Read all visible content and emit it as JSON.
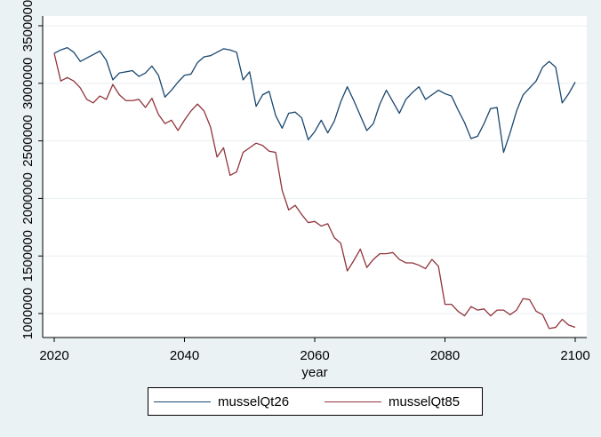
{
  "chart_data": {
    "type": "line",
    "xlabel": "year",
    "ylabel": "",
    "xlim": [
      2020,
      2100
    ],
    "ylim": [
      1000000,
      3500000
    ],
    "x_ticks": [
      2020,
      2040,
      2060,
      2080,
      2100
    ],
    "y_ticks": [
      1000000,
      1500000,
      2000000,
      2500000,
      3000000,
      3500000
    ],
    "x_tick_labels": [
      "2020",
      "2040",
      "2060",
      "2080",
      "2100"
    ],
    "y_tick_labels": [
      "1000000",
      "1500000",
      "2000000",
      "2500000",
      "3000000",
      "3500000"
    ],
    "grid": true,
    "legend_position": "bottom",
    "x": [
      2020,
      2021,
      2022,
      2023,
      2024,
      2025,
      2026,
      2027,
      2028,
      2029,
      2030,
      2031,
      2032,
      2033,
      2034,
      2035,
      2036,
      2037,
      2038,
      2039,
      2040,
      2041,
      2042,
      2043,
      2044,
      2045,
      2046,
      2047,
      2048,
      2049,
      2050,
      2051,
      2052,
      2053,
      2054,
      2055,
      2056,
      2057,
      2058,
      2059,
      2060,
      2061,
      2062,
      2063,
      2064,
      2065,
      2066,
      2067,
      2068,
      2069,
      2070,
      2071,
      2072,
      2073,
      2074,
      2075,
      2076,
      2077,
      2078,
      2079,
      2080,
      2081,
      2082,
      2083,
      2084,
      2085,
      2086,
      2087,
      2088,
      2089,
      2090,
      2091,
      2092,
      2093,
      2094,
      2095,
      2096,
      2097,
      2098,
      2099,
      2100
    ],
    "series": [
      {
        "name": "musselQt26",
        "color": "#1a476f",
        "values": [
          3260000,
          3290000,
          3310000,
          3270000,
          3190000,
          3220000,
          3250000,
          3280000,
          3200000,
          3030000,
          3090000,
          3100000,
          3110000,
          3060000,
          3090000,
          3150000,
          3070000,
          2880000,
          2940000,
          3010000,
          3070000,
          3080000,
          3180000,
          3230000,
          3240000,
          3270000,
          3300000,
          3290000,
          3270000,
          3030000,
          3100000,
          2800000,
          2900000,
          2930000,
          2720000,
          2610000,
          2740000,
          2750000,
          2700000,
          2510000,
          2580000,
          2680000,
          2570000,
          2670000,
          2840000,
          2970000,
          2850000,
          2720000,
          2590000,
          2650000,
          2820000,
          2940000,
          2840000,
          2740000,
          2860000,
          2920000,
          2970000,
          2860000,
          2900000,
          2940000,
          2910000,
          2890000,
          2770000,
          2660000,
          2520000,
          2540000,
          2650000,
          2780000,
          2790000,
          2400000,
          2570000,
          2760000,
          2900000,
          2960000,
          3020000,
          3140000,
          3190000,
          3140000,
          2830000,
          2910000,
          3010000
        ]
      },
      {
        "name": "musselQt85",
        "color": "#90353b",
        "values": [
          3260000,
          3020000,
          3050000,
          3020000,
          2960000,
          2860000,
          2830000,
          2890000,
          2860000,
          2990000,
          2900000,
          2850000,
          2850000,
          2860000,
          2790000,
          2870000,
          2730000,
          2650000,
          2680000,
          2590000,
          2680000,
          2760000,
          2820000,
          2760000,
          2620000,
          2360000,
          2440000,
          2200000,
          2230000,
          2400000,
          2440000,
          2480000,
          2460000,
          2410000,
          2400000,
          2070000,
          1900000,
          1940000,
          1860000,
          1790000,
          1800000,
          1760000,
          1780000,
          1660000,
          1610000,
          1370000,
          1460000,
          1560000,
          1400000,
          1470000,
          1520000,
          1520000,
          1530000,
          1470000,
          1440000,
          1440000,
          1420000,
          1390000,
          1470000,
          1410000,
          1080000,
          1080000,
          1020000,
          980000,
          1060000,
          1030000,
          1040000,
          980000,
          1030000,
          1030000,
          990000,
          1030000,
          1130000,
          1120000,
          1020000,
          990000,
          870000,
          880000,
          950000,
          900000,
          880000
        ]
      }
    ]
  }
}
